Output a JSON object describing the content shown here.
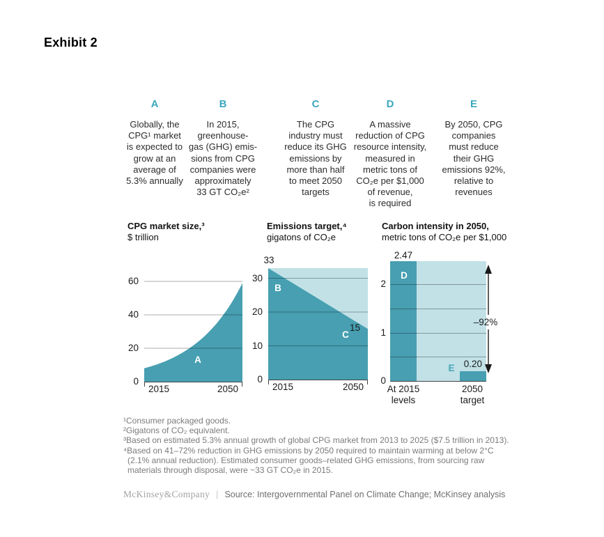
{
  "page": {
    "exhibit_title": "Exhibit 2"
  },
  "colors": {
    "accent_letter": "#3BA7BE",
    "fill_dark": "#479FB1",
    "fill_light": "#C1E1E7",
    "gridline": "rgba(0,0,0,0.32)",
    "axis": "#444444",
    "text": "#1a1a1a",
    "footnote_gray": "#7b7b7b",
    "arrow_black": "#1a1a1a",
    "chart_letter_teal": "#45A3B5"
  },
  "callouts": [
    {
      "letter": "A",
      "text": "Globally, the\nCPG¹ market\nis expected to\ngrow at an\naverage of\n5.3% annually"
    },
    {
      "letter": "B",
      "text": "In 2015,\ngreenhouse-\ngas (GHG) emis-\nsions from CPG\ncompanies were\napproximately\n33 GT CO₂e²"
    },
    {
      "letter": "C",
      "text": "The CPG\nindustry must\nreduce its GHG\nemissions by\nmore than half\nto meet 2050\ntargets"
    },
    {
      "letter": "D",
      "text": "A massive\nreduction of CPG\nresource intensity,\nmeasured in\nmetric tons of\nCO₂e per $1,000\nof revenue,\nis required"
    },
    {
      "letter": "E",
      "text": "By 2050, CPG\ncompanies\nmust reduce\ntheir GHG\nemissions 92%,\nrelative to\nrevenues"
    }
  ],
  "chart_data": [
    {
      "type": "area",
      "title": "CPG market size,³",
      "subtitle": "$ trillion",
      "letter": "A",
      "x_ticks": [
        "2015",
        "2050"
      ],
      "y_ticks": [
        0,
        20,
        40,
        60
      ],
      "ylim": [
        0,
        70
      ],
      "points": {
        "x": [
          2015,
          2020,
          2025,
          2030,
          2035,
          2040,
          2045,
          2050
        ],
        "y": [
          8,
          10.6,
          14.1,
          18.8,
          25,
          33.3,
          44.3,
          59
        ]
      }
    },
    {
      "type": "area",
      "title": "Emissions target,⁴",
      "subtitle": "gigatons of CO₂e",
      "x_ticks": [
        "2015",
        "2050"
      ],
      "y_ticks": [
        0,
        10,
        20,
        30
      ],
      "ylim": [
        0,
        33
      ],
      "series": [
        {
          "name": "GHG emissions path",
          "letter": "B",
          "x": [
            2015,
            2050
          ],
          "values": [
            33,
            15
          ],
          "fill": "dark"
        },
        {
          "name": "Required reduction band",
          "letter": "C",
          "band_top": 33,
          "fill": "light"
        }
      ],
      "annotations": [
        {
          "text": "33",
          "at": "top-left"
        },
        {
          "text": "15",
          "at": "line-end-2050"
        }
      ]
    },
    {
      "type": "bar",
      "title": "Carbon intensity in 2050,",
      "subtitle": "metric tons of CO₂e per $1,000",
      "categories": [
        "At 2015\nlevels",
        "2050\ntarget"
      ],
      "values": [
        2.47,
        0.2
      ],
      "value_labels": [
        "2.47",
        "0.20"
      ],
      "letters": [
        "D",
        "E"
      ],
      "y_ticks": [
        0,
        1,
        2
      ],
      "gridline_step": 0.5,
      "background_band_top": 2.47,
      "delta_label": "–92%"
    }
  ],
  "footnotes": [
    "¹Consumer packaged goods.",
    "²Gigatons of CO₂ equivalent.",
    "³Based on estimated 5.3% annual growth of global CPG market from 2013 to 2025 ($7.5 trillion in 2013).",
    "⁴Based on 41–72% reduction in GHG emissions by 2050 required to maintain warming at below 2°C (2.1% annual reduction). Estimated consumer goods–related GHG emissions, from sourcing raw materials through disposal, were ~33 GT CO₂e in 2015."
  ],
  "footer": {
    "logo": "McKinsey&Company",
    "separator": "|",
    "source": "Source: Intergovernmental Panel on Climate Change; McKinsey analysis"
  }
}
